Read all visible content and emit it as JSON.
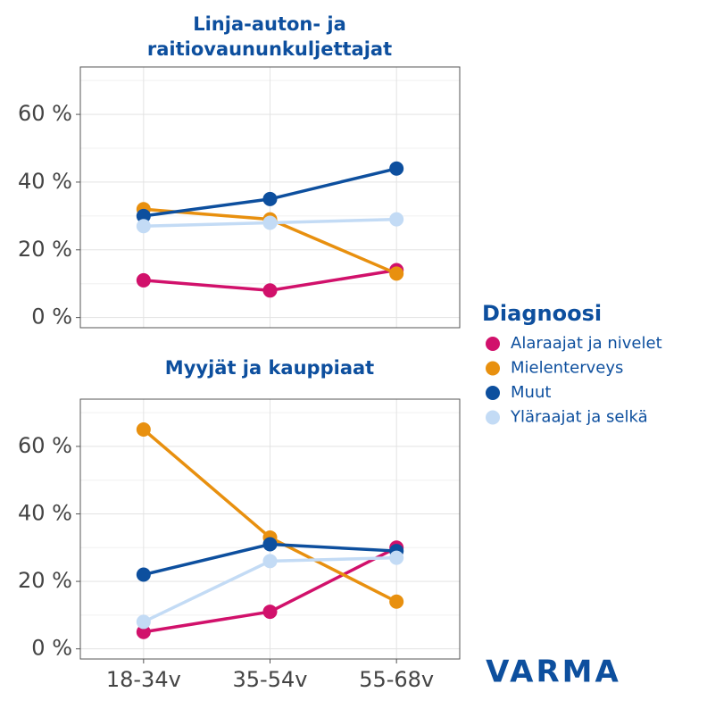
{
  "legend": {
    "title": "Diagnoosi"
  },
  "logo": "VARMA",
  "chart_data": [
    {
      "type": "line",
      "title": [
        "Linja-auton- ja",
        "raitiovaununkuljettajat"
      ],
      "categories": [
        null,
        null,
        null
      ],
      "ylim": [
        -3,
        74
      ],
      "yticks": [
        {
          "value": 0,
          "label": "0 %"
        },
        {
          "value": 20,
          "label": "20 %"
        },
        {
          "value": 40,
          "label": "40 %"
        },
        {
          "value": 60,
          "label": "60 %"
        }
      ],
      "grid": true,
      "series": [
        {
          "name": "Alaraajat ja nivelet",
          "color": "#d1116b",
          "values": [
            11,
            8,
            14
          ]
        },
        {
          "name": "Mielenterveys",
          "color": "#e8900f",
          "values": [
            32,
            29,
            13
          ]
        },
        {
          "name": "Muut",
          "color": "#0d4f9e",
          "values": [
            30,
            35,
            44
          ]
        },
        {
          "name": "Yläraajat ja selkä",
          "color": "#c3dbf5",
          "values": [
            27,
            28,
            29
          ]
        }
      ]
    },
    {
      "type": "line",
      "title": [
        "Myyjät ja kauppiaat"
      ],
      "categories": [
        "18-34v",
        "35-54v",
        "55-68v"
      ],
      "ylim": [
        -3,
        74
      ],
      "yticks": [
        {
          "value": 0,
          "label": "0 %"
        },
        {
          "value": 20,
          "label": "20 %"
        },
        {
          "value": 40,
          "label": "40 %"
        },
        {
          "value": 60,
          "label": "60 %"
        }
      ],
      "grid": true,
      "series": [
        {
          "name": "Alaraajat ja nivelet",
          "color": "#d1116b",
          "values": [
            5,
            11,
            30
          ]
        },
        {
          "name": "Mielenterveys",
          "color": "#e8900f",
          "values": [
            65,
            33,
            14
          ]
        },
        {
          "name": "Muut",
          "color": "#0d4f9e",
          "values": [
            22,
            31,
            29
          ]
        },
        {
          "name": "Yläraajat ja selkä",
          "color": "#c3dbf5",
          "values": [
            8,
            26,
            27
          ]
        }
      ]
    }
  ]
}
